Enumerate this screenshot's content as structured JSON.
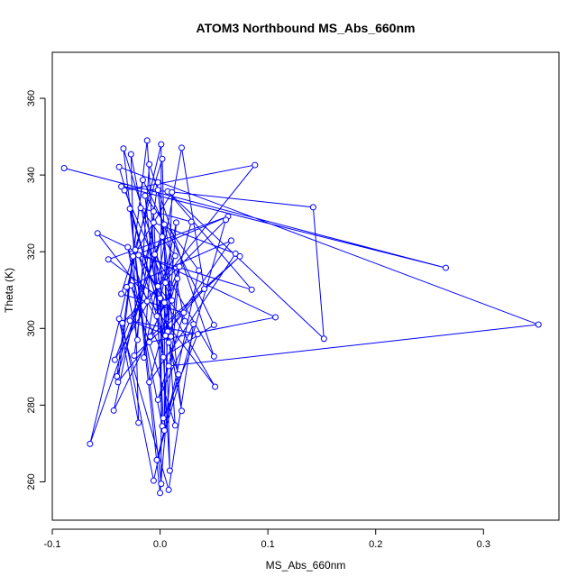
{
  "chart_data": {
    "type": "line",
    "title": "ATOM3 Northbound MS_Abs_660nm",
    "xlabel": "MS_Abs_660nm",
    "ylabel": "Theta (K)",
    "xlim": [
      -0.1,
      0.37
    ],
    "ylim": [
      250,
      372
    ],
    "xticks": [
      -0.1,
      0.0,
      0.1,
      0.2,
      0.3
    ],
    "xtick_labels": [
      "-0.1",
      "0.0",
      "0.1",
      "0.2",
      "0.3"
    ],
    "yticks": [
      260,
      280,
      300,
      320,
      340,
      360
    ],
    "ytick_labels": [
      "260",
      "280",
      "300",
      "320",
      "340",
      "360"
    ],
    "grid": false,
    "legend": "none",
    "series": [
      {
        "color": "#0000ff",
        "marker": "open-circle",
        "points": [
          [
            -0.089,
            341.8
          ],
          [
            0.265,
            315.8
          ],
          [
            -0.036,
            337.0
          ],
          [
            0.142,
            331.6
          ],
          [
            0.152,
            297.3
          ],
          [
            0.007,
            335.7
          ],
          [
            0.085,
            310.1
          ],
          [
            -0.02,
            319.1
          ],
          [
            -0.003,
            303.2
          ],
          [
            0.015,
            327.6
          ],
          [
            0.007,
            299.2
          ],
          [
            0.041,
            310.3
          ],
          [
            0.02,
            347.1
          ],
          [
            -0.015,
            292.4
          ],
          [
            -0.006,
            330.5
          ],
          [
            0.002,
            274.5
          ],
          [
            -0.03,
            321.2
          ],
          [
            -0.012,
            307.1
          ],
          [
            0.008,
            296.3
          ],
          [
            -0.038,
            342.1
          ],
          [
            0.351,
            301.0
          ],
          [
            0.008,
            290.2
          ],
          [
            -0.027,
            311.2
          ],
          [
            0.014,
            274.7
          ],
          [
            0.005,
            311.9
          ],
          [
            -0.034,
            346.9
          ],
          [
            0.001,
            259.5
          ],
          [
            0.001,
            348.0
          ],
          [
            -0.065,
            269.9
          ],
          [
            0.002,
            323.9
          ],
          [
            -0.042,
            291.8
          ],
          [
            0.014,
            318.9
          ],
          [
            -0.018,
            331.4
          ],
          [
            0.029,
            327.8
          ],
          [
            -0.01,
            286.0
          ],
          [
            0.07,
            319.5
          ],
          [
            -0.006,
            327.6
          ],
          [
            -0.043,
            278.6
          ],
          [
            0.016,
            313.0
          ],
          [
            0.01,
            297.9
          ],
          [
            -0.028,
            302.0
          ],
          [
            0.035,
            298.5
          ],
          [
            0.003,
            276.6
          ],
          [
            -0.012,
            349.0
          ],
          [
            -0.039,
            286.0
          ],
          [
            -0.01,
            296.4
          ],
          [
            0.107,
            302.9
          ],
          [
            -0.058,
            324.8
          ],
          [
            0.051,
            284.8
          ],
          [
            -0.023,
            320.5
          ],
          [
            0.004,
            306.7
          ],
          [
            0.004,
            273.4
          ],
          [
            0.011,
            335.5
          ],
          [
            -0.025,
            318.8
          ],
          [
            0.063,
            329.2
          ],
          [
            -0.048,
            318.0
          ],
          [
            0.0,
            307.9
          ],
          [
            0.009,
            262.9
          ],
          [
            0.002,
            344.2
          ],
          [
            -0.036,
            309.0
          ],
          [
            0.022,
            304.1
          ],
          [
            -0.002,
            281.4
          ],
          [
            0.031,
            301.1
          ],
          [
            0.008,
            257.9
          ],
          [
            -0.038,
            302.5
          ],
          [
            -0.02,
            275.4
          ],
          [
            -0.027,
            345.4
          ],
          [
            0.005,
            298.1
          ],
          [
            0.066,
            322.9
          ],
          [
            -0.031,
            310.8
          ],
          [
            -0.021,
            297.0
          ],
          [
            -0.01,
            342.8
          ],
          [
            0.05,
            292.7
          ],
          [
            -0.005,
            319.3
          ],
          [
            0.02,
            278.5
          ],
          [
            -0.002,
            336.1
          ],
          [
            0.011,
            307.3
          ],
          [
            -0.033,
            336.0
          ],
          [
            0.088,
            342.6
          ],
          [
            -0.002,
            311.0
          ],
          [
            0.023,
            301.9
          ],
          [
            0.004,
            327.1
          ],
          [
            -0.04,
            287.5
          ],
          [
            -0.016,
            338.7
          ],
          [
            0.05,
            300.9
          ],
          [
            0.003,
            292.5
          ],
          [
            -0.014,
            334.6
          ],
          [
            0.036,
            315.1
          ],
          [
            -0.006,
            260.3
          ],
          [
            -0.035,
            301.4
          ],
          [
            0.061,
            328.3
          ],
          [
            -0.003,
            265.7
          ],
          [
            0.017,
            288.0
          ],
          [
            -0.028,
            331.2
          ],
          [
            0.0,
            257.1
          ],
          [
            0.018,
            316.1
          ],
          [
            -0.009,
            297.9
          ],
          [
            0.074,
            318.8
          ],
          [
            -0.024,
            292.9
          ],
          [
            -0.002,
            338.1
          ]
        ]
      }
    ]
  }
}
